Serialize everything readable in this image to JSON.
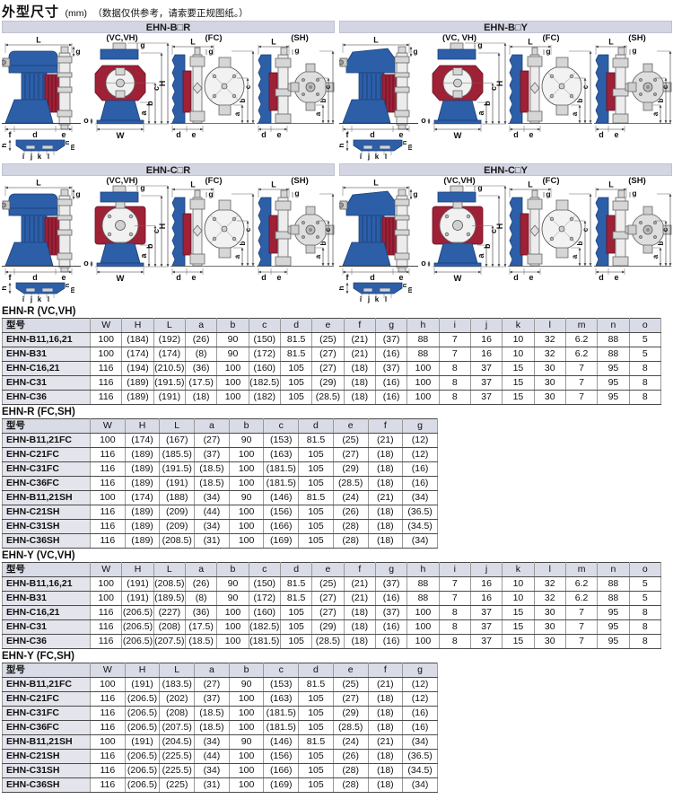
{
  "header": {
    "title": "外型尺寸",
    "unit": "(mm)",
    "note": "（数据仅供参考，请索要正规图纸。）"
  },
  "colors": {
    "pump_blue": "#2c5fa8",
    "pump_blue_dark": "#1b3f78",
    "pump_red": "#9e2136",
    "pump_red_dark": "#6b1024",
    "fitting_gray": "#d6d6d6",
    "panel_header_bg": "#d3d6e2",
    "table_header_bg": "#d9dce6",
    "model_col_bg": "#e4e4ec"
  },
  "diagrams": {
    "dims": {
      "L": "L",
      "H": "H",
      "W": "W",
      "a": "a",
      "b": "b",
      "c": "c",
      "d": "d",
      "e": "e",
      "f": "f",
      "g": "g",
      "h": "h",
      "i": "i",
      "j": "j",
      "k": "k",
      "l": "l",
      "m": "m",
      "n": "n",
      "o": "o"
    },
    "panels": [
      {
        "id": "ehn-b-r",
        "title": "EHN-B□R",
        "body": "B",
        "series": "R",
        "variants": [
          "(VC,VH)",
          "(FC)",
          "(SH)"
        ]
      },
      {
        "id": "ehn-b-y",
        "title": "EHN-B□Y",
        "body": "B",
        "series": "Y",
        "variants": [
          "(VC, VH)",
          "(FC)",
          "(SH)"
        ]
      },
      {
        "id": "ehn-c-r",
        "title": "EHN-C□R",
        "body": "C",
        "series": "R",
        "variants": [
          "(VC,VH)",
          "(FC)",
          "(SH)"
        ]
      },
      {
        "id": "ehn-c-y",
        "title": "EHN-C□Y",
        "body": "C",
        "series": "Y",
        "variants": [
          "(VC,VH)",
          "(FC)",
          "(SH)"
        ]
      }
    ]
  },
  "tables": [
    {
      "label": "EHN-R (VC,VH)",
      "wide": true,
      "columns": [
        "型号",
        "W",
        "H",
        "L",
        "a",
        "b",
        "c",
        "d",
        "e",
        "f",
        "g",
        "h",
        "i",
        "j",
        "k",
        "l",
        "m",
        "n",
        "o"
      ],
      "rows": [
        [
          "EHN-B11,16,21",
          "100",
          "(184)",
          "(192)",
          "(26)",
          "90",
          "(150)",
          "81.5",
          "(25)",
          "(21)",
          "(37)",
          "88",
          "7",
          "16",
          "10",
          "32",
          "6.2",
          "88",
          "5"
        ],
        [
          "EHN-B31",
          "100",
          "(174)",
          "(174)",
          "(8)",
          "90",
          "(172)",
          "81.5",
          "(27)",
          "(21)",
          "(16)",
          "88",
          "7",
          "16",
          "10",
          "32",
          "6.2",
          "88",
          "5"
        ],
        [
          "EHN-C16,21",
          "116",
          "(194)",
          "(210.5)",
          "(36)",
          "100",
          "(160)",
          "105",
          "(27)",
          "(18)",
          "(37)",
          "100",
          "8",
          "37",
          "15",
          "30",
          "7",
          "95",
          "8"
        ],
        [
          "EHN-C31",
          "116",
          "(189)",
          "(191.5)",
          "(17.5)",
          "100",
          "(182.5)",
          "105",
          "(29)",
          "(18)",
          "(16)",
          "100",
          "8",
          "37",
          "15",
          "30",
          "7",
          "95",
          "8"
        ],
        [
          "EHN-C36",
          "116",
          "(189)",
          "(191)",
          "(18)",
          "100",
          "(182)",
          "105",
          "(28.5)",
          "(18)",
          "(16)",
          "100",
          "8",
          "37",
          "15",
          "30",
          "7",
          "95",
          "8"
        ]
      ]
    },
    {
      "label": "EHN-R (FC,SH)",
      "wide": false,
      "columns": [
        "型号",
        "W",
        "H",
        "L",
        "a",
        "b",
        "c",
        "d",
        "e",
        "f",
        "g"
      ],
      "rows": [
        [
          "EHN-B11,21FC",
          "100",
          "(174)",
          "(167)",
          "(27)",
          "90",
          "(153)",
          "81.5",
          "(25)",
          "(21)",
          "(12)"
        ],
        [
          "EHN-C21FC",
          "116",
          "(189)",
          "(185.5)",
          "(37)",
          "100",
          "(163)",
          "105",
          "(27)",
          "(18)",
          "(12)"
        ],
        [
          "EHN-C31FC",
          "116",
          "(189)",
          "(191.5)",
          "(18.5)",
          "100",
          "(181.5)",
          "105",
          "(29)",
          "(18)",
          "(16)"
        ],
        [
          "EHN-C36FC",
          "116",
          "(189)",
          "(191)",
          "(18.5)",
          "100",
          "(181.5)",
          "105",
          "(28.5)",
          "(18)",
          "(16)"
        ],
        [
          "EHN-B11,21SH",
          "100",
          "(174)",
          "(188)",
          "(34)",
          "90",
          "(146)",
          "81.5",
          "(24)",
          "(21)",
          "(34)"
        ],
        [
          "EHN-C21SH",
          "116",
          "(189)",
          "(209)",
          "(44)",
          "100",
          "(156)",
          "105",
          "(26)",
          "(18)",
          "(36.5)"
        ],
        [
          "EHN-C31SH",
          "116",
          "(189)",
          "(209)",
          "(34)",
          "100",
          "(166)",
          "105",
          "(28)",
          "(18)",
          "(34.5)"
        ],
        [
          "EHN-C36SH",
          "116",
          "(189)",
          "(208.5)",
          "(31)",
          "100",
          "(169)",
          "105",
          "(28)",
          "(18)",
          "(34)"
        ]
      ]
    },
    {
      "label": "EHN-Y (VC,VH)",
      "wide": true,
      "columns": [
        "型号",
        "W",
        "H",
        "L",
        "a",
        "b",
        "c",
        "d",
        "e",
        "f",
        "g",
        "h",
        "i",
        "j",
        "k",
        "l",
        "m",
        "n",
        "o"
      ],
      "rows": [
        [
          "EHN-B11,16,21",
          "100",
          "(191)",
          "(208.5)",
          "(26)",
          "90",
          "(150)",
          "81.5",
          "(25)",
          "(21)",
          "(37)",
          "88",
          "7",
          "16",
          "10",
          "32",
          "6.2",
          "88",
          "5"
        ],
        [
          "EHN-B31",
          "100",
          "(191)",
          "(189.5)",
          "(8)",
          "90",
          "(172)",
          "81.5",
          "(27)",
          "(21)",
          "(16)",
          "88",
          "7",
          "16",
          "10",
          "32",
          "6.2",
          "88",
          "5"
        ],
        [
          "EHN-C16,21",
          "116",
          "(206.5)",
          "(227)",
          "(36)",
          "100",
          "(160)",
          "105",
          "(27)",
          "(18)",
          "(37)",
          "100",
          "8",
          "37",
          "15",
          "30",
          "7",
          "95",
          "8"
        ],
        [
          "EHN-C31",
          "116",
          "(206.5)",
          "(208)",
          "(17.5)",
          "100",
          "(182.5)",
          "105",
          "(29)",
          "(18)",
          "(16)",
          "100",
          "8",
          "37",
          "15",
          "30",
          "7",
          "95",
          "8"
        ],
        [
          "EHN-C36",
          "116",
          "(206.5)",
          "(207.5)",
          "(18.5)",
          "100",
          "(181.5)",
          "105",
          "(28.5)",
          "(18)",
          "(16)",
          "100",
          "8",
          "37",
          "15",
          "30",
          "7",
          "95",
          "8"
        ]
      ]
    },
    {
      "label": "EHN-Y (FC,SH)",
      "wide": false,
      "columns": [
        "型号",
        "W",
        "H",
        "L",
        "a",
        "b",
        "c",
        "d",
        "e",
        "f",
        "g"
      ],
      "rows": [
        [
          "EHN-B11,21FC",
          "100",
          "(191)",
          "(183.5)",
          "(27)",
          "90",
          "(153)",
          "81.5",
          "(25)",
          "(21)",
          "(12)"
        ],
        [
          "EHN-C21FC",
          "116",
          "(206.5)",
          "(202)",
          "(37)",
          "100",
          "(163)",
          "105",
          "(27)",
          "(18)",
          "(12)"
        ],
        [
          "EHN-C31FC",
          "116",
          "(206.5)",
          "(208)",
          "(18.5)",
          "100",
          "(181.5)",
          "105",
          "(29)",
          "(18)",
          "(16)"
        ],
        [
          "EHN-C36FC",
          "116",
          "(206.5)",
          "(207.5)",
          "(18.5)",
          "100",
          "(181.5)",
          "105",
          "(28.5)",
          "(18)",
          "(16)"
        ],
        [
          "EHN-B11,21SH",
          "100",
          "(191)",
          "(204.5)",
          "(34)",
          "90",
          "(146)",
          "81.5",
          "(24)",
          "(21)",
          "(34)"
        ],
        [
          "EHN-C21SH",
          "116",
          "(206.5)",
          "(225.5)",
          "(44)",
          "100",
          "(156)",
          "105",
          "(26)",
          "(18)",
          "(36.5)"
        ],
        [
          "EHN-C31SH",
          "116",
          "(206.5)",
          "(225.5)",
          "(34)",
          "100",
          "(166)",
          "105",
          "(28)",
          "(18)",
          "(34.5)"
        ],
        [
          "EHN-C36SH",
          "116",
          "(206.5)",
          "(225)",
          "(31)",
          "100",
          "(169)",
          "105",
          "(28)",
          "(18)",
          "(34)"
        ]
      ]
    }
  ]
}
